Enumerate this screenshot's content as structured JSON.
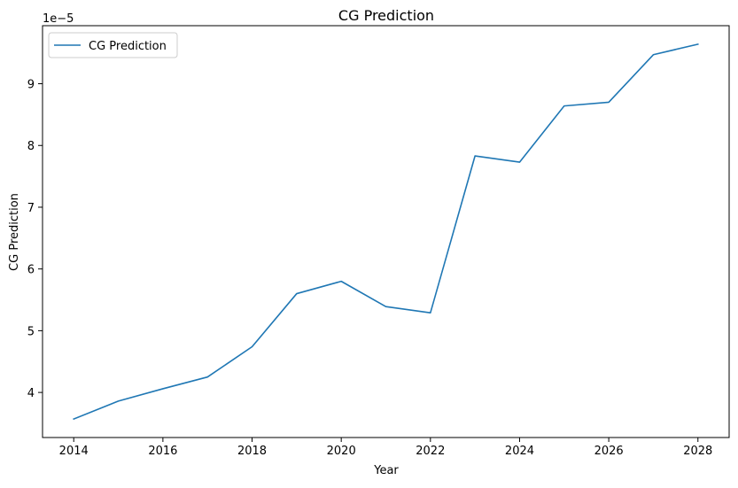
{
  "chart_data": {
    "type": "line",
    "title": "CG Prediction",
    "xlabel": "Year",
    "ylabel": "CG Prediction",
    "y_offset_label": "1e−5",
    "x": [
      2014,
      2015,
      2016,
      2017,
      2018,
      2019,
      2020,
      2021,
      2022,
      2023,
      2024,
      2025,
      2026,
      2027,
      2028
    ],
    "series": [
      {
        "name": "CG Prediction",
        "color": "#1f77b4",
        "values": [
          3.57,
          3.86,
          4.06,
          4.25,
          4.74,
          5.6,
          5.8,
          5.39,
          5.29,
          7.83,
          7.73,
          8.64,
          8.7,
          9.47,
          9.64
        ]
      }
    ],
    "xticks": [
      2014,
      2016,
      2018,
      2020,
      2022,
      2024,
      2026,
      2028
    ],
    "xtick_labels": [
      "2014",
      "2016",
      "2018",
      "2020",
      "2022",
      "2024",
      "2026",
      "2028"
    ],
    "yticks": [
      4,
      5,
      6,
      7,
      8,
      9
    ],
    "ytick_labels": [
      "4",
      "5",
      "6",
      "7",
      "8",
      "9"
    ],
    "xlim": [
      2013.3,
      2028.7
    ],
    "ylim": [
      3.27,
      9.94
    ],
    "grid": false,
    "legend": "upper-left"
  }
}
